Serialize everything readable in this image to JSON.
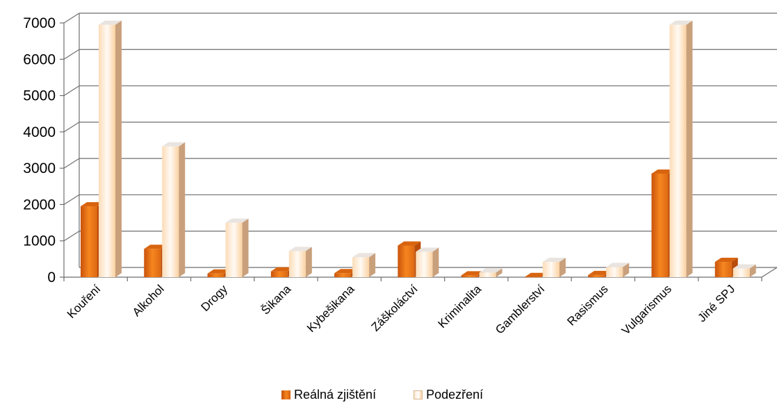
{
  "chart_data": {
    "type": "bar",
    "categories": [
      "Kouření",
      "Alkohol",
      "Drogy",
      "Šikana",
      "Kybešikana",
      "Záškoláctví",
      "Kriminalita",
      "Gamblerství",
      "Rasismus",
      "Vulgarismus",
      "Jiné SPJ"
    ],
    "series": [
      {
        "name": "Reálná zjištění",
        "values": [
          1950,
          780,
          100,
          160,
          110,
          870,
          50,
          5,
          60,
          2850,
          420
        ]
      },
      {
        "name": "Podezření",
        "values": [
          6950,
          3600,
          1500,
          720,
          550,
          700,
          130,
          420,
          280,
          6950,
          240
        ]
      }
    ],
    "ylim": [
      0,
      7000
    ],
    "yticks": [
      "0",
      "1000",
      "2000",
      "3000",
      "4000",
      "5000",
      "6000",
      "7000"
    ],
    "grid": true,
    "legend_position": "bottom",
    "title": "",
    "xlabel": "",
    "ylabel": "",
    "colors": {
      "real_front": "#f07a18",
      "real_side": "#b94c0a",
      "real_top": "#d8640f",
      "pod_front": "#fde3c4",
      "pod_side": "#c9a07c",
      "pod_top": "#e9e4df",
      "grid": "#6e6e6e"
    }
  }
}
